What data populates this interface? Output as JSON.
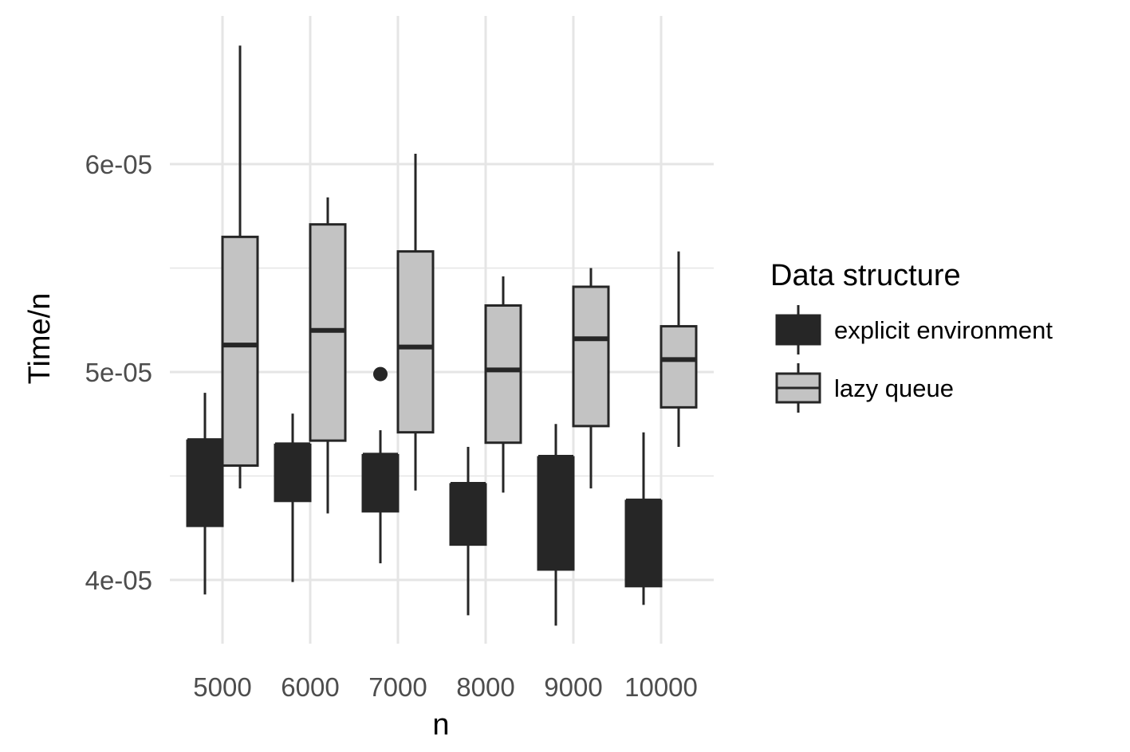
{
  "chart_data": {
    "type": "box",
    "xlabel": "n",
    "ylabel": "Time/n",
    "categories": [
      "5000",
      "6000",
      "7000",
      "8000",
      "9000",
      "10000"
    ],
    "ylim": [
      3.65e-05,
      6.5e-05
    ],
    "yticks": [
      4e-05,
      5e-05,
      6e-05
    ],
    "ytick_labels": [
      "4e-05",
      "5e-05",
      "6e-05"
    ],
    "grid": true,
    "legend": {
      "title": "Data structure",
      "position": "right",
      "entries": [
        "explicit environment",
        "lazy queue"
      ]
    },
    "series": [
      {
        "name": "explicit environment",
        "fill": "#262626",
        "boxes": [
          {
            "category": "5000",
            "whisker_low": 3.93e-05,
            "q1": 4.26e-05,
            "median": 4.67e-05,
            "q3": 4.67e-05,
            "whisker_high": 4.9e-05,
            "outliers": []
          },
          {
            "category": "6000",
            "whisker_low": 3.99e-05,
            "q1": 4.38e-05,
            "median": 4.65e-05,
            "q3": 4.65e-05,
            "whisker_high": 4.8e-05,
            "outliers": []
          },
          {
            "category": "7000",
            "whisker_low": 4.08e-05,
            "q1": 4.33e-05,
            "median": 4.6e-05,
            "q3": 4.6e-05,
            "whisker_high": 4.72e-05,
            "outliers": [
              4.99e-05
            ]
          },
          {
            "category": "8000",
            "whisker_low": 3.83e-05,
            "q1": 4.17e-05,
            "median": 4.46e-05,
            "q3": 4.46e-05,
            "whisker_high": 4.64e-05,
            "outliers": []
          },
          {
            "category": "9000",
            "whisker_low": 3.78e-05,
            "q1": 4.05e-05,
            "median": 4.59e-05,
            "q3": 4.59e-05,
            "whisker_high": 4.75e-05,
            "outliers": []
          },
          {
            "category": "10000",
            "whisker_low": 3.88e-05,
            "q1": 3.97e-05,
            "median": 4.38e-05,
            "q3": 4.38e-05,
            "whisker_high": 4.71e-05,
            "outliers": []
          }
        ]
      },
      {
        "name": "lazy queue",
        "fill": "#c3c3c3",
        "boxes": [
          {
            "category": "5000",
            "whisker_low": 4.44e-05,
            "q1": 4.55e-05,
            "median": 5.13e-05,
            "q3": 5.65e-05,
            "whisker_high": 6.57e-05,
            "outliers": []
          },
          {
            "category": "6000",
            "whisker_low": 4.32e-05,
            "q1": 4.67e-05,
            "median": 5.2e-05,
            "q3": 5.71e-05,
            "whisker_high": 5.84e-05,
            "outliers": []
          },
          {
            "category": "7000",
            "whisker_low": 4.43e-05,
            "q1": 4.71e-05,
            "median": 5.12e-05,
            "q3": 5.58e-05,
            "whisker_high": 6.05e-05,
            "outliers": []
          },
          {
            "category": "8000",
            "whisker_low": 4.42e-05,
            "q1": 4.66e-05,
            "median": 5.01e-05,
            "q3": 5.32e-05,
            "whisker_high": 5.46e-05,
            "outliers": []
          },
          {
            "category": "9000",
            "whisker_low": 4.44e-05,
            "q1": 4.74e-05,
            "median": 5.16e-05,
            "q3": 5.41e-05,
            "whisker_high": 5.5e-05,
            "outliers": []
          },
          {
            "category": "10000",
            "whisker_low": 4.64e-05,
            "q1": 4.83e-05,
            "median": 5.06e-05,
            "q3": 5.22e-05,
            "whisker_high": 5.58e-05,
            "outliers": []
          }
        ]
      }
    ]
  }
}
